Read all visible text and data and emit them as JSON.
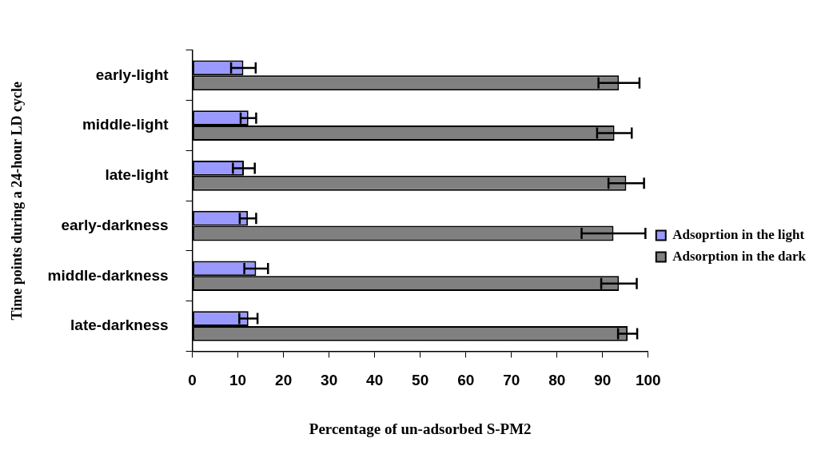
{
  "chart_data": {
    "type": "bar",
    "orientation": "horizontal",
    "xlabel": "Percentage of un-adsorbed S-PM2",
    "ylabel": "Time points during a 24-hour LD cycle",
    "categories": [
      "early-light",
      "middle-light",
      "late-light",
      "early-darkness",
      "middle-darkness",
      "late-darkness"
    ],
    "series": [
      {
        "name": "Adsoprtion in the light",
        "color": "#9999ff",
        "values": [
          11.2,
          12.3,
          11.3,
          12.2,
          14.0,
          12.3
        ],
        "errors": [
          2.7,
          1.7,
          2.4,
          1.8,
          2.6,
          2.0
        ]
      },
      {
        "name": "Adsorption in the dark",
        "color": "#808080",
        "values": [
          93.6,
          92.6,
          95.2,
          92.4,
          93.6,
          95.5
        ],
        "errors": [
          4.5,
          3.8,
          3.9,
          7.0,
          3.9,
          2.1
        ]
      }
    ],
    "xlim": [
      0,
      100
    ],
    "xticks": [
      0,
      10,
      20,
      30,
      40,
      50,
      60,
      70,
      80,
      90,
      100
    ],
    "grid": false,
    "legend": "right"
  }
}
